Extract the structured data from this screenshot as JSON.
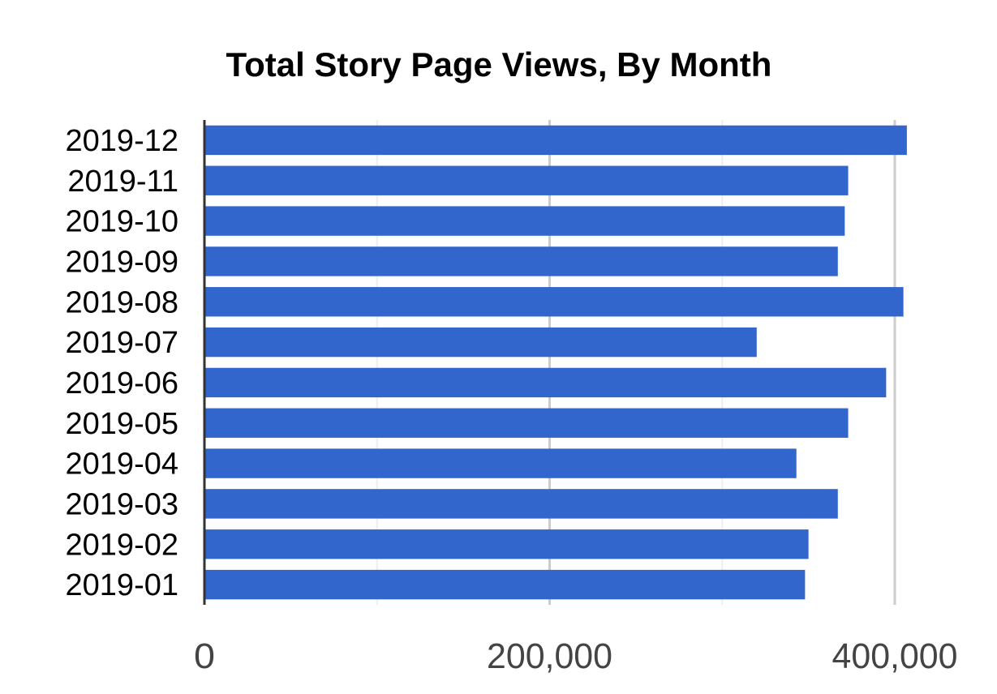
{
  "chart_data": {
    "type": "bar",
    "orientation": "horizontal",
    "title": "Total Story Page Views, By Month",
    "xlabel": "",
    "ylabel": "",
    "categories": [
      "2019-12",
      "2019-11",
      "2019-10",
      "2019-09",
      "2019-08",
      "2019-07",
      "2019-06",
      "2019-05",
      "2019-04",
      "2019-03",
      "2019-02",
      "2019-01"
    ],
    "values": [
      407000,
      373000,
      371000,
      367000,
      405000,
      320000,
      395000,
      373000,
      343000,
      367000,
      350000,
      348000
    ],
    "xlim": [
      0,
      400000
    ],
    "xticks": [
      0,
      200000,
      400000
    ],
    "xtick_labels": [
      "0",
      "200,000",
      "400,000"
    ],
    "minor_gridlines": true,
    "legend": "none",
    "bar_color": "#3366cc"
  }
}
